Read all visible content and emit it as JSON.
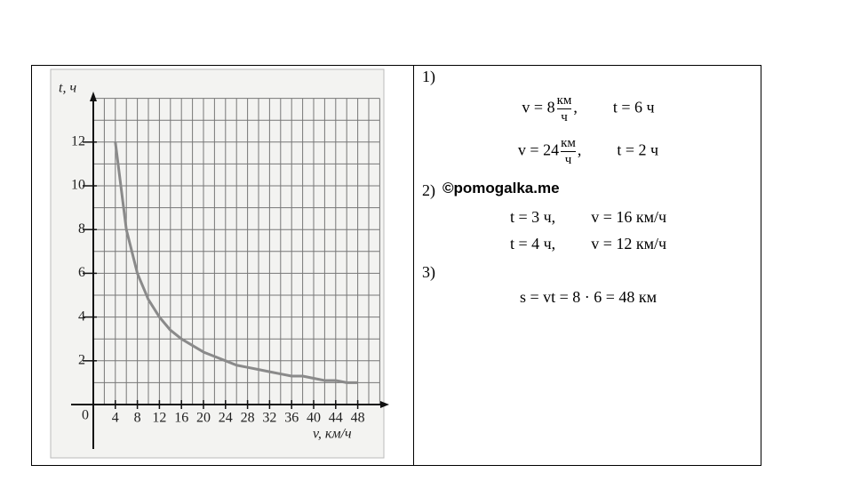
{
  "chart_data": {
    "type": "line",
    "y_label": "t, ч",
    "x_label": "v, км/ч",
    "origin_label": "0",
    "x": [
      4,
      6,
      8,
      10,
      12,
      14,
      16,
      18,
      20,
      22,
      24,
      26,
      28,
      30,
      32,
      34,
      36,
      38,
      40,
      42,
      44,
      46,
      48
    ],
    "values": [
      12,
      8,
      6,
      4.8,
      4,
      3.4,
      3,
      2.7,
      2.4,
      2.2,
      2,
      1.8,
      1.7,
      1.6,
      1.5,
      1.4,
      1.3,
      1.3,
      1.2,
      1.1,
      1.1,
      1.0,
      1.0
    ],
    "color": "#8a8a8a",
    "xlim": [
      0,
      52
    ],
    "ylim": [
      0,
      14
    ],
    "xticks": [
      4,
      8,
      12,
      16,
      20,
      24,
      28,
      32,
      36,
      40,
      44,
      48
    ],
    "yticks": [
      2,
      4,
      6,
      8,
      10,
      12
    ],
    "xgrid": [
      2,
      4,
      6,
      8,
      10,
      12,
      14,
      16,
      18,
      20,
      22,
      24,
      26,
      28,
      30,
      32,
      34,
      36,
      38,
      40,
      42,
      44,
      46,
      48,
      50,
      52
    ],
    "ygrid": [
      1,
      2,
      3,
      4,
      5,
      6,
      7,
      8,
      9,
      10,
      11,
      12,
      13,
      14
    ],
    "grid": true
  },
  "solution": {
    "part1": {
      "label": "1)",
      "lines": [
        {
          "lhs": "v = 8",
          "unit_num": "км",
          "unit_den": "ч",
          "sep": ",",
          "rhs": "t = 6 ч"
        },
        {
          "lhs": "v = 24",
          "unit_num": "км",
          "unit_den": "ч",
          "sep": ",",
          "rhs": "t = 2 ч"
        }
      ]
    },
    "part2": {
      "label": "2)",
      "lines": [
        [
          "t = 3 ч,",
          "v = 16 км/ч"
        ],
        [
          "t = 4 ч,",
          "v = 12 км/ч"
        ]
      ]
    },
    "part3": {
      "label": "3)",
      "lines": [
        "s = vt = 8 · 6 = 48 км"
      ]
    }
  },
  "watermark": "©pomogalka.me"
}
